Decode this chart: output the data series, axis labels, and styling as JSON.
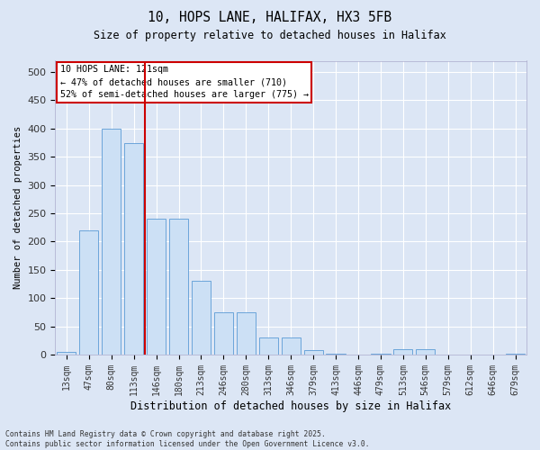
{
  "title_line1": "10, HOPS LANE, HALIFAX, HX3 5FB",
  "title_line2": "Size of property relative to detached houses in Halifax",
  "xlabel": "Distribution of detached houses by size in Halifax",
  "ylabel": "Number of detached properties",
  "categories": [
    "13sqm",
    "47sqm",
    "80sqm",
    "113sqm",
    "146sqm",
    "180sqm",
    "213sqm",
    "246sqm",
    "280sqm",
    "313sqm",
    "346sqm",
    "379sqm",
    "413sqm",
    "446sqm",
    "479sqm",
    "513sqm",
    "546sqm",
    "579sqm",
    "612sqm",
    "646sqm",
    "679sqm"
  ],
  "values": [
    5,
    220,
    400,
    375,
    240,
    240,
    130,
    75,
    75,
    30,
    30,
    8,
    2,
    0,
    2,
    10,
    10,
    0,
    0,
    0,
    2
  ],
  "bar_color": "#cce0f5",
  "bar_edge_color": "#5b9bd5",
  "bg_color": "#dce6f5",
  "grid_color": "#ffffff",
  "vline_x": 3.5,
  "vline_color": "#cc0000",
  "annotation_title": "10 HOPS LANE: 121sqm",
  "annotation_line2": "← 47% of detached houses are smaller (710)",
  "annotation_line3": "52% of semi-detached houses are larger (775) →",
  "annotation_box_color": "#ffffff",
  "annotation_box_edge": "#cc0000",
  "ylim": [
    0,
    520
  ],
  "yticks": [
    0,
    50,
    100,
    150,
    200,
    250,
    300,
    350,
    400,
    450,
    500
  ],
  "footer_line1": "Contains HM Land Registry data © Crown copyright and database right 2025.",
  "footer_line2": "Contains public sector information licensed under the Open Government Licence v3.0."
}
